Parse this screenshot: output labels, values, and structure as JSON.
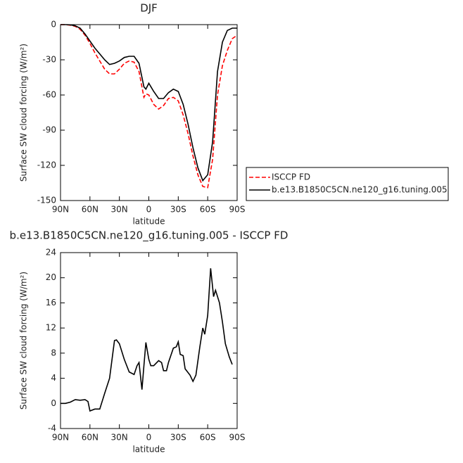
{
  "chart_data": [
    {
      "type": "line",
      "title": "DJF",
      "xlabel": "latitude",
      "ylabel": "Surface SW cloud forcing (W/m²)",
      "xlim": [
        90,
        -90
      ],
      "xticks": [
        {
          "value": 90,
          "label": "90N"
        },
        {
          "value": 60,
          "label": "60N"
        },
        {
          "value": 30,
          "label": "30N"
        },
        0,
        {
          "value": -30,
          "label": "30S"
        },
        {
          "value": -60,
          "label": "60S"
        },
        {
          "value": -90,
          "label": "90S"
        }
      ],
      "ylim": [
        -150,
        0
      ],
      "yticks": [
        -150,
        -120,
        -90,
        -60,
        -30,
        0
      ],
      "legend": "right",
      "series": [
        {
          "name": "ISCCP FD",
          "color": "#ff0000",
          "linestyle": "dashed",
          "x": [
            90,
            85,
            80,
            75,
            70,
            65,
            60,
            55,
            50,
            45,
            40,
            35,
            30,
            25,
            20,
            15,
            10,
            5,
            3,
            0,
            -5,
            -10,
            -15,
            -20,
            -25,
            -30,
            -35,
            -40,
            -45,
            -50,
            -55,
            -60,
            -65,
            -70,
            -75,
            -80,
            -85,
            -90
          ],
          "values": [
            0,
            0,
            -0.5,
            -1.5,
            -4,
            -9,
            -16,
            -24,
            -31,
            -38,
            -42,
            -42,
            -38,
            -33,
            -31,
            -32,
            -40,
            -62,
            -59,
            -60,
            -68,
            -72,
            -69,
            -63,
            -62,
            -65,
            -77,
            -93,
            -112,
            -128,
            -138,
            -139,
            -115,
            -60,
            -35,
            -22,
            -12,
            -9
          ]
        },
        {
          "name": "b.e13.B1850C5CN.ne120_g16.tuning.005",
          "color": "#000000",
          "linestyle": "solid",
          "x": [
            90,
            85,
            80,
            75,
            70,
            65,
            60,
            55,
            50,
            45,
            40,
            35,
            30,
            25,
            20,
            15,
            10,
            5,
            3,
            0,
            -5,
            -10,
            -15,
            -20,
            -25,
            -30,
            -35,
            -40,
            -45,
            -50,
            -55,
            -60,
            -65,
            -70,
            -75,
            -80,
            -85,
            -90
          ],
          "values": [
            0,
            0,
            -0.2,
            -1,
            -3,
            -8,
            -14,
            -20,
            -25,
            -30,
            -34,
            -33,
            -31,
            -28,
            -27,
            -27,
            -33,
            -53,
            -55,
            -50,
            -57,
            -63,
            -63,
            -58,
            -55,
            -57,
            -68,
            -85,
            -105,
            -122,
            -133,
            -128,
            -100,
            -40,
            -15,
            -5,
            -3,
            -3
          ]
        }
      ]
    },
    {
      "type": "line",
      "title": "b.e13.B1850C5CN.ne120_g16.tuning.005 - ISCCP FD",
      "xlabel": "latitude",
      "ylabel": "Surface SW cloud forcing (W/m²)",
      "xlim": [
        90,
        -90
      ],
      "xticks": [
        {
          "value": 90,
          "label": "90N"
        },
        {
          "value": 60,
          "label": "60N"
        },
        {
          "value": 30,
          "label": "30N"
        },
        0,
        {
          "value": -30,
          "label": "30S"
        },
        {
          "value": -60,
          "label": "60S"
        },
        {
          "value": -90,
          "label": "90S"
        }
      ],
      "ylim": [
        -4,
        24
      ],
      "yticks": [
        -4,
        0,
        4,
        8,
        12,
        16,
        20,
        24
      ],
      "series": [
        {
          "color": "#000000",
          "linestyle": "solid",
          "x": [
            90,
            85,
            80,
            75,
            70,
            65,
            62,
            60,
            55,
            50,
            45,
            40,
            35,
            33,
            30,
            25,
            20,
            15,
            12,
            10,
            7,
            5,
            3,
            0,
            -2,
            -5,
            -10,
            -13,
            -15,
            -18,
            -20,
            -25,
            -28,
            -30,
            -32,
            -35,
            -37,
            -42,
            -45,
            -48,
            -52,
            -55,
            -57,
            -60,
            -63,
            -66,
            -68,
            -72,
            -75,
            -78,
            -82,
            -85
          ],
          "values": [
            0,
            0,
            0.2,
            0.6,
            0.5,
            0.6,
            0.3,
            -1.2,
            -0.9,
            -0.9,
            1.6,
            4,
            10,
            10.1,
            9.5,
            7,
            5,
            4.6,
            6,
            6.5,
            2.2,
            6,
            9.7,
            7,
            6,
            6,
            6.8,
            6.5,
            5.2,
            5.2,
            6.5,
            8.8,
            9,
            9.8,
            7.8,
            7.6,
            5.5,
            4.5,
            3.5,
            4.5,
            9,
            12,
            11,
            14,
            21.5,
            17,
            18,
            16,
            13,
            9.5,
            7.4,
            6.2
          ]
        }
      ]
    }
  ]
}
